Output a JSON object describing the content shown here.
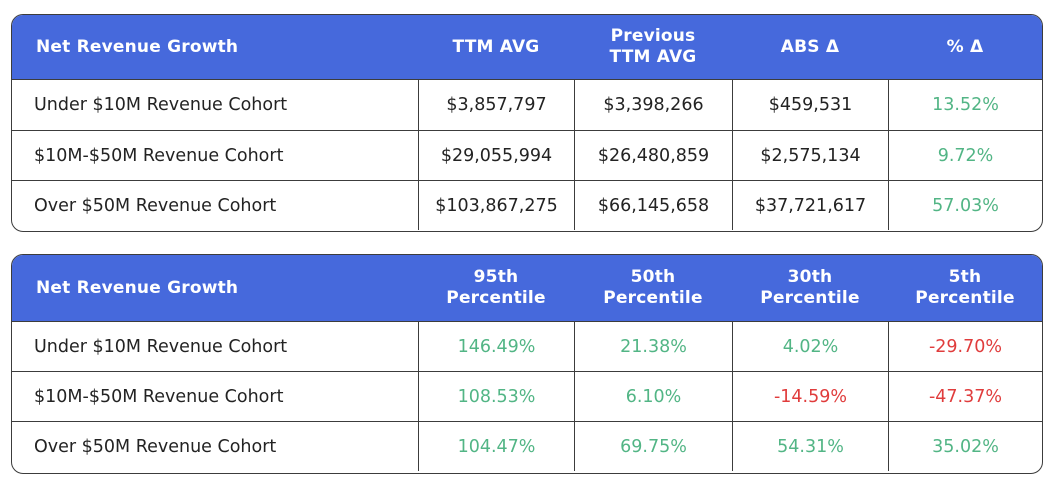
{
  "growth_table": {
    "header": {
      "label": "Net Revenue Growth",
      "col1": "TTM AVG",
      "col2": "Previous TTM AVG",
      "col3": "ABS Δ",
      "col4": "% Δ"
    },
    "rows": [
      {
        "cohort": "Under $10M Revenue Cohort",
        "ttm_avg": "$3,857,797",
        "prev_ttm_avg": "$3,398,266",
        "abs_delta": "$459,531",
        "pct_delta": "13.52%"
      },
      {
        "cohort": "$10M-$50M Revenue Cohort",
        "ttm_avg": "$29,055,994",
        "prev_ttm_avg": "$26,480,859",
        "abs_delta": "$2,575,134",
        "pct_delta": "9.72%"
      },
      {
        "cohort": "Over $50M Revenue Cohort",
        "ttm_avg": "$103,867,275",
        "prev_ttm_avg": "$66,145,658",
        "abs_delta": "$37,721,617",
        "pct_delta": "57.03%"
      }
    ]
  },
  "percentile_table": {
    "header": {
      "label": "Net Revenue Growth",
      "col1": "95th Percentile",
      "col2": "50th Percentile",
      "col3": "30th Percentile",
      "col4": "5th Percentile"
    },
    "rows": [
      {
        "cohort": "Under $10M Revenue Cohort",
        "p95": "146.49%",
        "p50": "21.38%",
        "p30": "4.02%",
        "p5": "-29.70%"
      },
      {
        "cohort": "$10M-$50M Revenue Cohort",
        "p95": "108.53%",
        "p50": "6.10%",
        "p30": "-14.59%",
        "p5": "-47.37%"
      },
      {
        "cohort": "Over $50M Revenue Cohort",
        "p95": "104.47%",
        "p50": "69.75%",
        "p30": "54.31%",
        "p5": "35.02%"
      }
    ]
  },
  "colors": {
    "header_bg": "#4669dc",
    "positive": "#52b585",
    "negative": "#e03c3c"
  }
}
